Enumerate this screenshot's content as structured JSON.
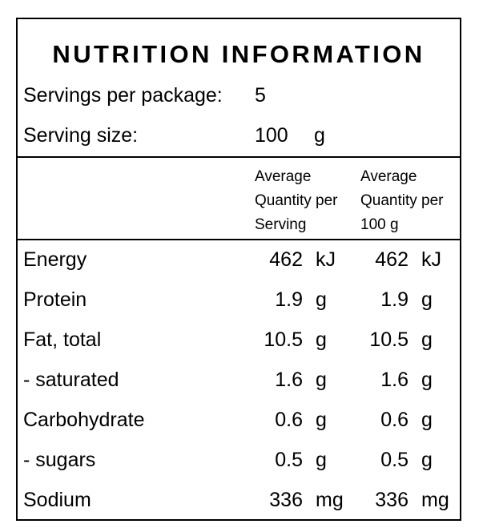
{
  "title": "NUTRITION INFORMATION",
  "servings": {
    "label": "Servings per package:",
    "value": "5"
  },
  "serving_size": {
    "label": "Serving size:",
    "value": "100",
    "unit": "g"
  },
  "columns": {
    "per_serving": [
      "Average",
      "Quantity per",
      "Serving"
    ],
    "per_100g": [
      "Average",
      "Quantity per",
      "100 g"
    ]
  },
  "rows": [
    {
      "name": "Energy",
      "serving": "462",
      "serving_unit": "kJ",
      "per100": "462",
      "per100_unit": "kJ"
    },
    {
      "name": "Protein",
      "serving": "1.9",
      "serving_unit": "g",
      "per100": "1.9",
      "per100_unit": "g"
    },
    {
      "name": "Fat, total",
      "serving": "10.5",
      "serving_unit": "g",
      "per100": "10.5",
      "per100_unit": "g"
    },
    {
      "name": "- saturated",
      "serving": "1.6",
      "serving_unit": "g",
      "per100": "1.6",
      "per100_unit": "g"
    },
    {
      "name": "Carbohydrate",
      "serving": "0.6",
      "serving_unit": "g",
      "per100": "0.6",
      "per100_unit": "g"
    },
    {
      "name": "- sugars",
      "serving": "0.5",
      "serving_unit": "g",
      "per100": "0.5",
      "per100_unit": "g"
    },
    {
      "name": "Sodium",
      "serving": "336",
      "serving_unit": "mg",
      "per100": "336",
      "per100_unit": "mg"
    }
  ]
}
